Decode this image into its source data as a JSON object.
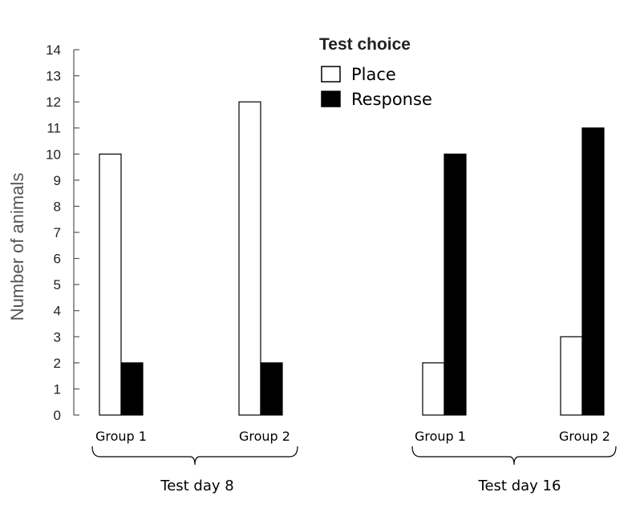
{
  "chart_data": {
    "type": "bar",
    "ylabel": "Number of animals",
    "ylim": [
      0,
      14
    ],
    "yticks": [
      0,
      1,
      2,
      3,
      4,
      5,
      6,
      7,
      8,
      9,
      10,
      11,
      12,
      13,
      14
    ],
    "legend": {
      "title": "Test choice",
      "placement": "top-center"
    },
    "series": [
      {
        "name": "Place",
        "color": "#ffffff"
      },
      {
        "name": "Response",
        "color": "#000000"
      }
    ],
    "test_days": [
      {
        "label": "Test day 8",
        "groups": [
          {
            "label": "Group 1",
            "values": [
              10,
              2
            ]
          },
          {
            "label": "Group 2",
            "values": [
              12,
              2
            ]
          }
        ]
      },
      {
        "label": "Test day 16",
        "groups": [
          {
            "label": "Group 1",
            "values": [
              2,
              10
            ]
          },
          {
            "label": "Group 2",
            "values": [
              3,
              11
            ]
          }
        ]
      }
    ]
  }
}
